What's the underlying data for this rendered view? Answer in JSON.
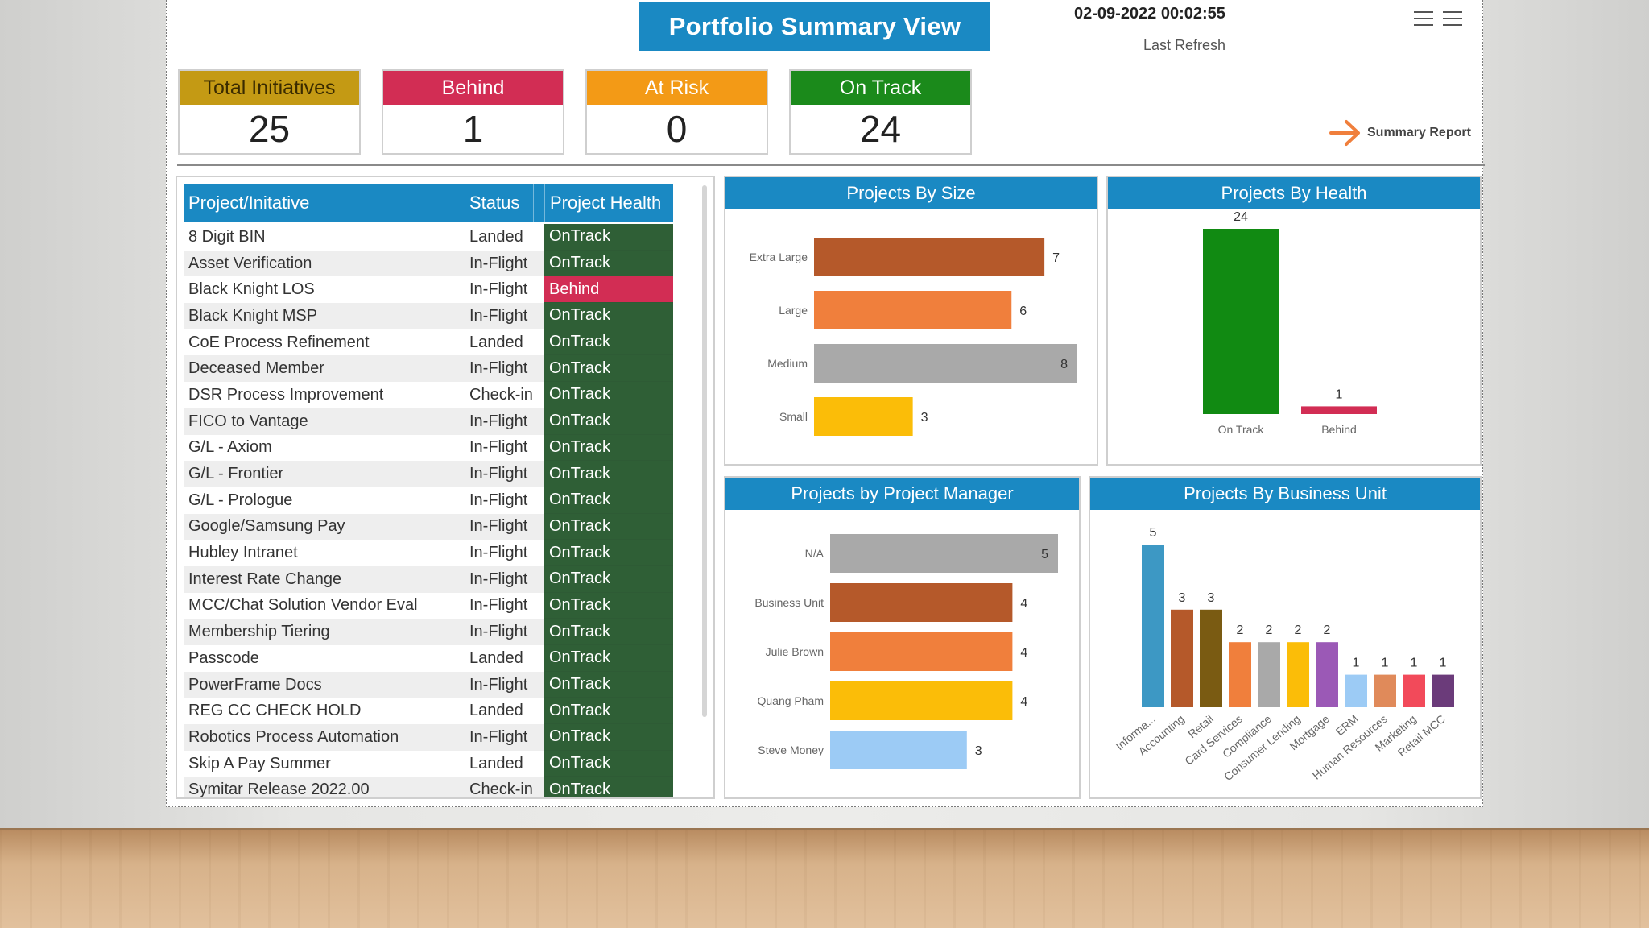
{
  "header": {
    "title": "Portfolio Summary View",
    "datetime": "02-09-2022 00:02:55",
    "refresh_label": "Last Refresh",
    "summary_link": "Summary Report"
  },
  "kpis": [
    {
      "label": "Total Initiatives",
      "value": "25",
      "color": "#c49a14"
    },
    {
      "label": "Behind",
      "value": "1",
      "color": "#d22d54"
    },
    {
      "label": "At Risk",
      "value": "0",
      "color": "#f39a16"
    },
    {
      "label": "On Track",
      "value": "24",
      "color": "#1b8a1b"
    }
  ],
  "table": {
    "headers": {
      "name": "Project/Initative",
      "status": "Status",
      "health": "Project Health"
    },
    "health_colors": {
      "OnTrack": "#2f5f36",
      "Behind": "#d22d54"
    },
    "rows": [
      {
        "name": "8 Digit BIN",
        "status": "Landed",
        "health": "OnTrack"
      },
      {
        "name": "Asset Verification",
        "status": "In-Flight",
        "health": "OnTrack"
      },
      {
        "name": "Black Knight LOS",
        "status": "In-Flight",
        "health": "Behind"
      },
      {
        "name": "Black Knight MSP",
        "status": "In-Flight",
        "health": "OnTrack"
      },
      {
        "name": "CoE Process Refinement",
        "status": "Landed",
        "health": "OnTrack"
      },
      {
        "name": "Deceased Member",
        "status": "In-Flight",
        "health": "OnTrack"
      },
      {
        "name": "DSR Process Improvement",
        "status": "Check-in",
        "health": "OnTrack"
      },
      {
        "name": "FICO to Vantage",
        "status": "In-Flight",
        "health": "OnTrack"
      },
      {
        "name": "G/L - Axiom",
        "status": "In-Flight",
        "health": "OnTrack"
      },
      {
        "name": "G/L - Frontier",
        "status": "In-Flight",
        "health": "OnTrack"
      },
      {
        "name": "G/L - Prologue",
        "status": "In-Flight",
        "health": "OnTrack"
      },
      {
        "name": "Google/Samsung Pay",
        "status": "In-Flight",
        "health": "OnTrack"
      },
      {
        "name": "Hubley Intranet",
        "status": "In-Flight",
        "health": "OnTrack"
      },
      {
        "name": "Interest Rate Change",
        "status": "In-Flight",
        "health": "OnTrack"
      },
      {
        "name": "MCC/Chat Solution Vendor Eval",
        "status": "In-Flight",
        "health": "OnTrack"
      },
      {
        "name": "Membership Tiering",
        "status": "In-Flight",
        "health": "OnTrack"
      },
      {
        "name": "Passcode",
        "status": "Landed",
        "health": "OnTrack"
      },
      {
        "name": "PowerFrame Docs",
        "status": "In-Flight",
        "health": "OnTrack"
      },
      {
        "name": "REG CC CHECK HOLD",
        "status": "Landed",
        "health": "OnTrack"
      },
      {
        "name": "Robotics Process Automation",
        "status": "In-Flight",
        "health": "OnTrack"
      },
      {
        "name": "Skip A Pay Summer",
        "status": "Landed",
        "health": "OnTrack"
      },
      {
        "name": "Symitar Release 2022.00",
        "status": "Check-in",
        "health": "OnTrack"
      }
    ]
  },
  "chart_data": [
    {
      "type": "bar",
      "orientation": "horizontal",
      "title": "Projects By Size",
      "categories": [
        "Extra Large",
        "Large",
        "Medium",
        "Small"
      ],
      "values": [
        7,
        6,
        8,
        3
      ],
      "colors": [
        "#b5592a",
        "#f07f3c",
        "#a9a9a9",
        "#fbbd08"
      ],
      "xlim": [
        0,
        8
      ]
    },
    {
      "type": "bar",
      "orientation": "vertical",
      "title": "Projects By Health",
      "categories": [
        "On Track",
        "Behind"
      ],
      "values": [
        24,
        1
      ],
      "colors": [
        "#118a12",
        "#d22d54"
      ],
      "ylim": [
        0,
        24
      ]
    },
    {
      "type": "bar",
      "orientation": "horizontal",
      "title": "Projects by Project Manager",
      "categories": [
        "N/A",
        "Business Unit",
        "Julie Brown",
        "Quang Pham",
        "Steve Money"
      ],
      "values": [
        5,
        4,
        4,
        4,
        3
      ],
      "colors": [
        "#a9a9a9",
        "#b5592a",
        "#f07f3c",
        "#fbbd08",
        "#9ccbf5"
      ],
      "xlim": [
        0,
        5
      ]
    },
    {
      "type": "bar",
      "orientation": "vertical",
      "title": "Projects By Business Unit",
      "categories": [
        "Informa...",
        "Accounting",
        "Retail",
        "Card Services",
        "Compliance",
        "Consumer Lending",
        "Mortgage",
        "ERM",
        "Human Resources",
        "Marketing",
        "Retail MCC"
      ],
      "values": [
        5,
        3,
        3,
        2,
        2,
        2,
        2,
        1,
        1,
        1,
        1
      ],
      "colors": [
        "#3d98c4",
        "#b5592a",
        "#7a5b12",
        "#f07f3c",
        "#a9a9a9",
        "#fbbd08",
        "#9b59b6",
        "#9ccbf5",
        "#e08a5a",
        "#f24a5a",
        "#6b3b7a"
      ],
      "ylim": [
        0,
        5
      ]
    }
  ]
}
